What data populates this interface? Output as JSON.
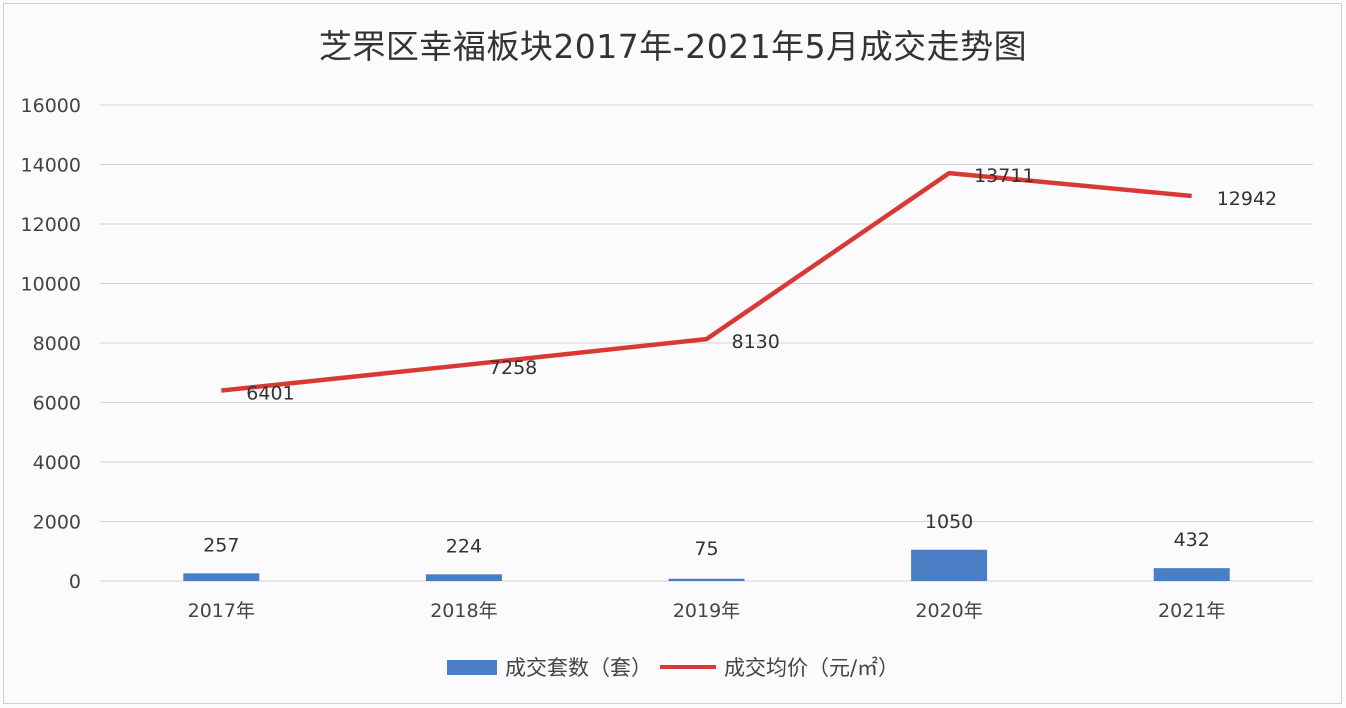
{
  "chart_data": {
    "type": "bar+line",
    "title": "芝罘区幸福板块2017年-2021年5月成交走势图",
    "xlabel": "",
    "ylabel": "",
    "ylim": [
      0,
      16000
    ],
    "yticks": [
      0,
      2000,
      4000,
      6000,
      8000,
      10000,
      12000,
      14000,
      16000
    ],
    "grid": true,
    "legend_position": "bottom",
    "categories": [
      "2017年",
      "2018年",
      "2019年",
      "2020年",
      "2021年"
    ],
    "series": [
      {
        "name": "成交套数（套）",
        "type": "bar",
        "color": "#4a7ec4",
        "values": [
          257,
          224,
          75,
          1050,
          432
        ]
      },
      {
        "name": "成交均价（元/㎡）",
        "type": "line",
        "color": "#d83a33",
        "values": [
          6401,
          7258,
          8130,
          13711,
          12942
        ]
      }
    ]
  },
  "title": "芝罘区幸福板块2017年-2021年5月成交走势图",
  "legend": {
    "bar_label": "成交套数（套）",
    "line_label": "成交均价（元/㎡）"
  },
  "colors": {
    "bar": "#4a7ec4",
    "line": "#d83a33",
    "grid": "#d4d4d4"
  }
}
